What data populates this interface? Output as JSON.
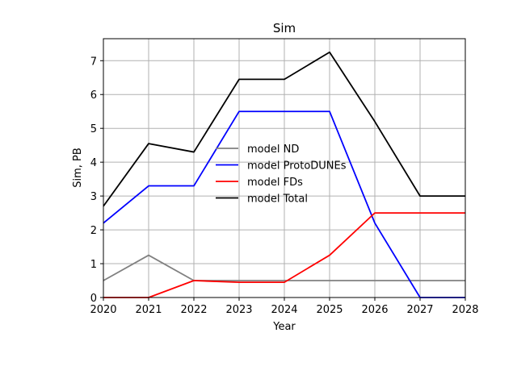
{
  "chart_data": {
    "type": "line",
    "title": "Sim",
    "xlabel": "Year",
    "ylabel": "Sim, PB",
    "xlim": [
      2020,
      2028
    ],
    "ylim": [
      0,
      7.65
    ],
    "xticks": [
      2020,
      2021,
      2022,
      2023,
      2024,
      2025,
      2026,
      2027,
      2028
    ],
    "yticks": [
      0,
      1,
      2,
      3,
      4,
      5,
      6,
      7
    ],
    "grid": true,
    "legend_position": "center",
    "x": [
      2020,
      2021,
      2022,
      2023,
      2024,
      2025,
      2026,
      2027,
      2028
    ],
    "series": [
      {
        "name": "model ND",
        "color": "#808080",
        "values": [
          0.5,
          1.25,
          0.5,
          0.5,
          0.5,
          0.5,
          0.5,
          0.5,
          0.5
        ]
      },
      {
        "name": "model ProtoDUNEs",
        "color": "#0000ff",
        "values": [
          2.2,
          3.3,
          3.3,
          5.5,
          5.5,
          5.5,
          2.2,
          0.0,
          0.0
        ]
      },
      {
        "name": "model FDs",
        "color": "#ff0000",
        "values": [
          0.0,
          0.0,
          0.5,
          0.45,
          0.45,
          1.25,
          2.5,
          2.5,
          2.5
        ]
      },
      {
        "name": "model Total",
        "color": "#000000",
        "values": [
          2.7,
          4.55,
          4.3,
          6.45,
          6.45,
          7.25,
          5.2,
          3.0,
          3.0
        ]
      }
    ]
  }
}
